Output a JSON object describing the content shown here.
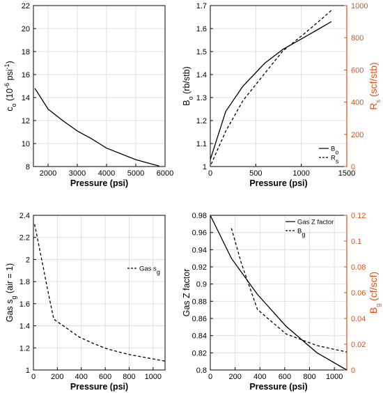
{
  "chart_data": [
    {
      "id": "co",
      "type": "line",
      "xlabel": "Pressure (psi)",
      "ylabel": "c_o (10^-6 psi^-1)",
      "xlim": [
        1500,
        6000
      ],
      "ylim": [
        8,
        22
      ],
      "xticks": [
        2000,
        3000,
        4000,
        5000,
        6000
      ],
      "yticks": [
        8,
        10,
        12,
        14,
        16,
        18,
        20,
        22
      ],
      "grid": true,
      "series": [
        {
          "axis": "left",
          "dash": "solid",
          "x": [
            1550,
            2000,
            2500,
            3000,
            3500,
            4000,
            4500,
            5000,
            5500,
            5800
          ],
          "y": [
            14.8,
            13.0,
            12.0,
            11.1,
            10.4,
            9.6,
            9.1,
            8.6,
            8.25,
            8.05
          ]
        }
      ]
    },
    {
      "id": "bo_rs",
      "type": "line",
      "xlabel": "Pressure (psi)",
      "ylabel": "B_o (rb/stb)",
      "ylabel_right": "R_s (scf/stb)",
      "xlim": [
        0,
        1500
      ],
      "ylim": [
        1,
        1.7
      ],
      "ylim_right": [
        0,
        1000
      ],
      "xticks": [
        0,
        500,
        1000,
        1500
      ],
      "yticks": [
        1,
        1.1,
        1.2,
        1.3,
        1.4,
        1.5,
        1.6,
        1.7
      ],
      "yticks_right": [
        0,
        200,
        400,
        600,
        800,
        1000
      ],
      "grid": true,
      "legend_position": "bottom-right",
      "series": [
        {
          "name": "B_o",
          "axis": "left",
          "dash": "solid",
          "x": [
            0,
            170,
            360,
            600,
            800,
            1000,
            1200,
            1330
          ],
          "y": [
            1.03,
            1.24,
            1.35,
            1.45,
            1.51,
            1.555,
            1.6,
            1.63
          ]
        },
        {
          "name": "R_s",
          "axis": "right",
          "dash": "dashed",
          "x": [
            10,
            170,
            360,
            600,
            800,
            1000,
            1200,
            1330
          ],
          "y": [
            15,
            220,
            410,
            580,
            720,
            810,
            905,
            970
          ]
        }
      ]
    },
    {
      "id": "gas_sg",
      "type": "line",
      "xlabel": "Pressure (psi)",
      "ylabel": "Gas s_g (air = 1)",
      "xlim": [
        0,
        1100
      ],
      "ylim": [
        1,
        2.4
      ],
      "xticks": [
        0,
        200,
        400,
        600,
        800,
        1000
      ],
      "yticks": [
        1,
        1.2,
        1.4,
        1.6,
        1.8,
        2,
        2.2,
        2.4
      ],
      "grid": true,
      "legend_position": "top-right",
      "series": [
        {
          "name": "Gas s_g",
          "axis": "left",
          "dash": "dashed",
          "x": [
            10,
            60,
            120,
            170,
            250,
            380,
            500,
            620,
            800,
            1000,
            1100
          ],
          "y": [
            2.32,
            2.05,
            1.72,
            1.46,
            1.4,
            1.3,
            1.24,
            1.19,
            1.14,
            1.1,
            1.08
          ]
        }
      ]
    },
    {
      "id": "z_bg",
      "type": "line",
      "xlabel": "Pressure (psi)",
      "ylabel": "Gas Z factor",
      "ylabel_right": "B_g (cf/scf)",
      "xlim": [
        0,
        1100
      ],
      "ylim": [
        0.8,
        0.98
      ],
      "ylim_right": [
        0,
        0.12
      ],
      "xticks": [
        0,
        200,
        400,
        600,
        800,
        1000
      ],
      "yticks": [
        0.8,
        0.82,
        0.84,
        0.86,
        0.88,
        0.9,
        0.92,
        0.94,
        0.96,
        0.98
      ],
      "yticks_right": [
        0,
        0.02,
        0.04,
        0.06,
        0.08,
        0.1,
        0.12
      ],
      "grid": true,
      "legend_position": "top-right",
      "series": [
        {
          "name": "Gas Z factor",
          "axis": "left",
          "dash": "solid",
          "x": [
            0,
            170,
            380,
            610,
            860,
            1100
          ],
          "y": [
            0.98,
            0.93,
            0.888,
            0.851,
            0.82,
            0.8
          ]
        },
        {
          "name": "B_g",
          "axis": "right",
          "dash": "dashed",
          "x": [
            170,
            250,
            380,
            610,
            860,
            1000,
            1100
          ],
          "y": [
            0.11,
            0.083,
            0.047,
            0.028,
            0.019,
            0.016,
            0.014
          ]
        }
      ]
    }
  ],
  "colors": {
    "right_axis": "#d95319",
    "line": "#000000",
    "grid": "#d9d9d9"
  }
}
